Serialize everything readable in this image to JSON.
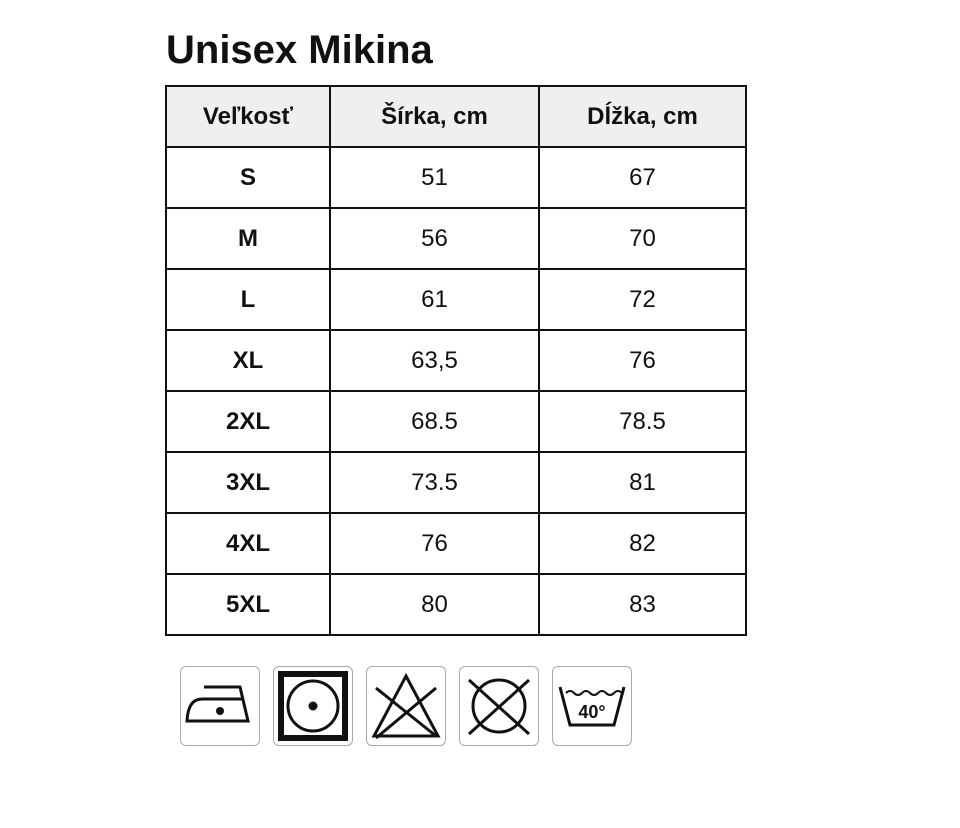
{
  "title": "Unisex Mikina",
  "table": {
    "headers": [
      "Veľkosť",
      "Šírka, cm",
      "Dĺžka, cm"
    ],
    "rows": [
      [
        "S",
        "51",
        "67"
      ],
      [
        "M",
        "56",
        "70"
      ],
      [
        "L",
        "61",
        "72"
      ],
      [
        "XL",
        "63,5",
        "76"
      ],
      [
        "2XL",
        "68.5",
        "78.5"
      ],
      [
        "3XL",
        "73.5",
        "81"
      ],
      [
        "4XL",
        "76",
        "82"
      ],
      [
        "5XL",
        "80",
        "83"
      ]
    ]
  },
  "care_icons": [
    {
      "name": "iron-low-heat-icon"
    },
    {
      "name": "tumble-dry-low-icon"
    },
    {
      "name": "do-not-bleach-icon"
    },
    {
      "name": "do-not-dry-clean-icon"
    },
    {
      "name": "wash-40-icon",
      "label": "40°"
    }
  ]
}
